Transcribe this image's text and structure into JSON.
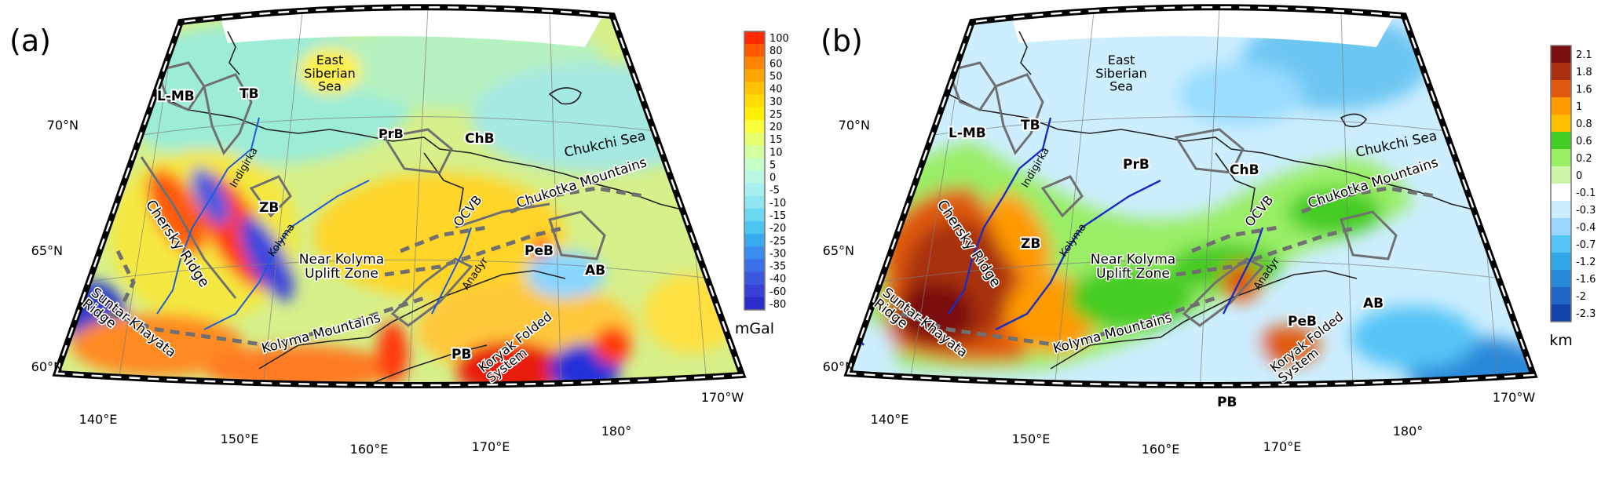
{
  "figure": "Two maps of the Northeast Asia / Chukotka region",
  "panels": [
    {
      "id": "a",
      "label": "(a)",
      "quantity": "gravity anomaly",
      "colorbar": {
        "unit": "mGal",
        "ticks": [
          "100",
          "80",
          "60",
          "50",
          "40",
          "30",
          "25",
          "20",
          "15",
          "10",
          "5",
          "0",
          "-5",
          "-10",
          "-15",
          "-20",
          "-25",
          "-30",
          "-35",
          "-40",
          "-60",
          "-80"
        ],
        "colors": [
          "#ff2a00",
          "#ff5a00",
          "#ff8400",
          "#ffa500",
          "#ffc400",
          "#ffdd00",
          "#fff000",
          "#fbff3a",
          "#e8ff6e",
          "#d4ff9e",
          "#c4ffc8",
          "#b8f7e4",
          "#a8f0f0",
          "#8fe6f0",
          "#6cd8f0",
          "#4cc6f0",
          "#3aaaf0",
          "#3a8cf0",
          "#3c70e8",
          "#3c58e0",
          "#3840d8",
          "#2c2ccc"
        ]
      },
      "latitudes": [
        "70°N",
        "65°N",
        "60°N"
      ],
      "longitudes": [
        "140°E",
        "150°E",
        "160°E",
        "170°E",
        "180°",
        "170°W"
      ],
      "labels": {
        "lmb": "L-MB",
        "tb": "TB",
        "ess": "East\nSiberian\nSea",
        "prb": "PrB",
        "chb": "ChB",
        "chukchi": "Chukchi Sea",
        "indigirka": "Indigirka",
        "zb": "ZB",
        "kolyma": "Kolyma",
        "chersky": "Chersky Ridge",
        "nkuz": "Near Kolyma\nUplift Zone",
        "ocvb": "OCVB",
        "chukotka": "Chukotka Mountains",
        "peb": "PeB",
        "anadyr": "Anadyr",
        "ab": "AB",
        "suntar": "Suntar-Khayata\nRidge",
        "kolymam": "Kolyma Mountains",
        "pb": "PB",
        "koryak": "Koryak Folded\nSystem"
      }
    },
    {
      "id": "b",
      "label": "(b)",
      "quantity": "elevation",
      "colorbar": {
        "unit": "km",
        "ticks": [
          "2.1",
          "1.8",
          "1.6",
          "1",
          "0.8",
          "0.6",
          "0.2",
          "0",
          "-0.1",
          "-0.3",
          "-0.4",
          "-0.7",
          "-1.2",
          "-1.6",
          "-2",
          "-2.3"
        ],
        "colors": [
          "#7a1010",
          "#a83010",
          "#e05a10",
          "#ff9a00",
          "#ffbf00",
          "#44cc22",
          "#99ee66",
          "#ccf5aa",
          "#ffffff",
          "#cceeff",
          "#9ad8ff",
          "#55c4f5",
          "#33a8e8",
          "#2a88d8",
          "#2266c8",
          "#1444aa"
        ]
      },
      "latitudes": [
        "70°N",
        "65°N",
        "60°N"
      ],
      "longitudes": [
        "140°E",
        "150°E",
        "160°E",
        "170°E",
        "180°",
        "170°W"
      ],
      "labels": {
        "lmb": "L-MB",
        "tb": "TB",
        "ess": "East\nSiberian\nSea",
        "prb": "PrB",
        "chb": "ChB",
        "chukchi": "Chukchi Sea",
        "indigirka": "Indigirka",
        "zb": "ZB",
        "kolyma": "Kolyma",
        "chersky": "Chersky Ridge",
        "nkuz": "Near Kolyma\nUplift Zone",
        "ocvb": "OCVB",
        "chukotka": "Chukotka Mountains",
        "peb": "PeB",
        "anadyr": "Anadyr",
        "ab": "AB",
        "suntar": "Suntar-Khayata\nRidge",
        "kolymam": "Kolyma Mountains",
        "pb": "PB",
        "koryak": "Koryak Folded\nSystem"
      }
    }
  ]
}
